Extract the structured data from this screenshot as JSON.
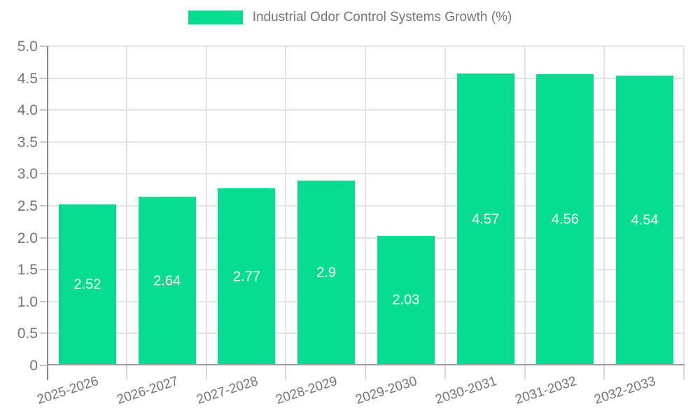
{
  "legend": {
    "label": "Industrial Odor Control Systems Growth (%)"
  },
  "colors": {
    "bar": "#06DB92",
    "grid": "#e3e3e3",
    "axis_y": "#8a8a8a",
    "axis_x": "#9c9c9c",
    "tick": "#c6c6c6",
    "text": "#757575",
    "bar_label": "#ffffff"
  },
  "chart_data": {
    "type": "bar",
    "title": "Industrial Odor Control Systems Growth (%)",
    "categories": [
      "2025-2026",
      "2026-2027",
      "2027-2028",
      "2028-2029",
      "2029-2030",
      "2030-2031",
      "2031-2032",
      "2032-2033"
    ],
    "values": [
      2.52,
      2.64,
      2.77,
      2.9,
      2.03,
      4.57,
      4.56,
      4.54
    ],
    "value_labels": [
      "2.52",
      "2.64",
      "2.77",
      "2.9",
      "2.03",
      "4.57",
      "4.56",
      "4.54"
    ],
    "xlabel": "",
    "ylabel": "",
    "ylim": [
      0,
      5
    ],
    "yticks": [
      0,
      0.5,
      1,
      1.5,
      2,
      2.5,
      3,
      3.5,
      4,
      4.5,
      5
    ],
    "ytick_labels": [
      "0",
      "0.5",
      "1.0",
      "1.5",
      "2.0",
      "2.5",
      "3.0",
      "3.5",
      "4.0",
      "4.5",
      "5.0"
    ],
    "grid": true,
    "legend_position": "top-center",
    "bar_color": "#06DB92",
    "value_label_color": "#ffffff"
  }
}
